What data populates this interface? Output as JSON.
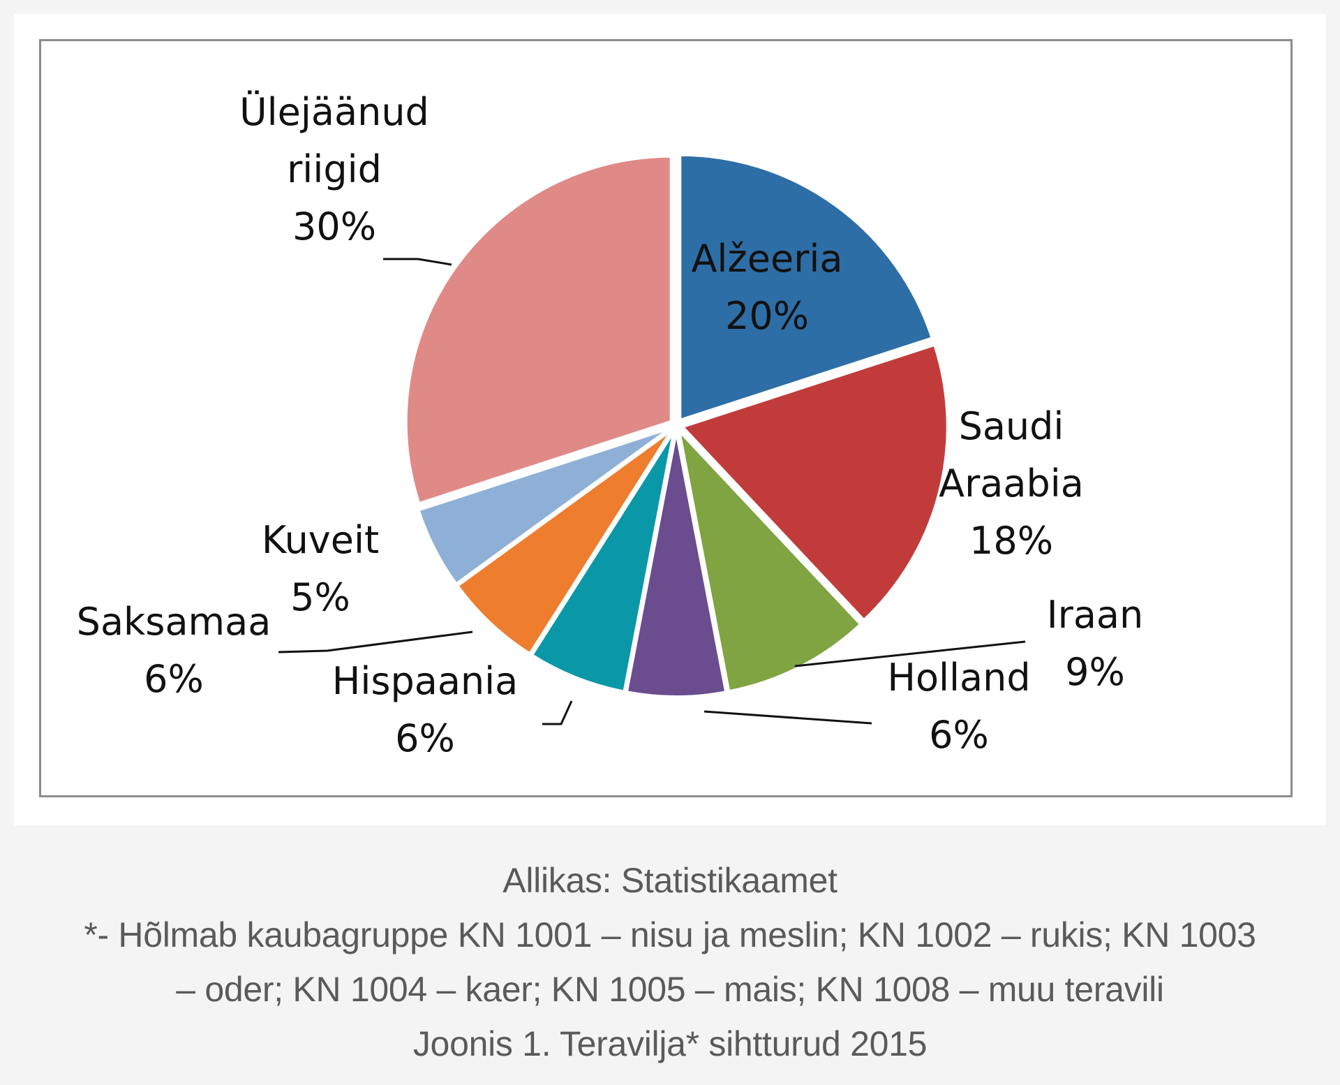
{
  "chart_data": {
    "type": "pie",
    "title": "",
    "start": "12 o'clock, clockwise",
    "slices": [
      {
        "label": [
          "Alžeeria"
        ],
        "pct_label": "20%",
        "value": 20,
        "color": "#2e6ea6"
      },
      {
        "label": [
          "Saudi",
          "Araabia"
        ],
        "pct_label": "18%",
        "value": 18,
        "color": "#c23b3b"
      },
      {
        "label": [
          "Iraan"
        ],
        "pct_label": "9%",
        "value": 9,
        "color": "#7fa441"
      },
      {
        "label": [
          "Holland"
        ],
        "pct_label": "6%",
        "value": 6,
        "color": "#6b4c8f"
      },
      {
        "label": [
          "Hispaania"
        ],
        "pct_label": "6%",
        "value": 6,
        "color": "#0a98a8"
      },
      {
        "label": [
          "Saksamaa"
        ],
        "pct_label": "6%",
        "value": 6,
        "color": "#ee7d2e"
      },
      {
        "label": [
          "Kuveit"
        ],
        "pct_label": "5%",
        "value": 5,
        "color": "#8fb0d6"
      },
      {
        "label": [
          "Ülejäänud",
          "riigid"
        ],
        "pct_label": "30%",
        "value": 30,
        "color": "#e08a88"
      }
    ]
  },
  "caption": {
    "source": "Allikas: Statistikaamet",
    "note_line1": "*- Hõlmab kaubagruppe KN 1001 – nisu ja meslin; KN 1002 – rukis; KN 1003",
    "note_line2": "– oder; KN 1004 – kaer; KN 1005 – mais; KN 1008 – muu teravili",
    "figure_title": "Joonis 1. Teravilja* sihtturud 2015"
  }
}
